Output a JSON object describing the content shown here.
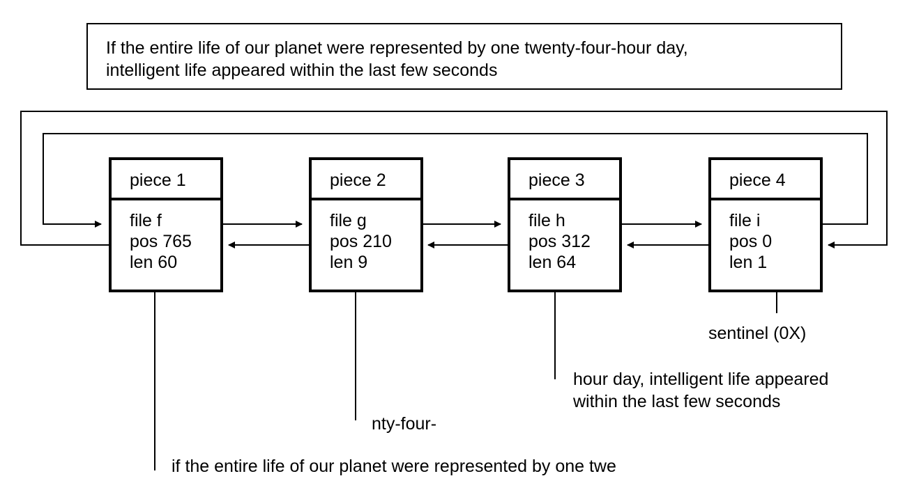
{
  "quote": {
    "line1": "If the entire life of our planet were represented by one twenty-four-hour day,",
    "line2": "intelligent life appeared within the last few seconds"
  },
  "pieces": [
    {
      "title": "piece 1",
      "file": "file f",
      "pos": "pos 765",
      "len": "len 60"
    },
    {
      "title": "piece 2",
      "file": "file g",
      "pos": "pos 210",
      "len": "len 9"
    },
    {
      "title": "piece 3",
      "file": "file h",
      "pos": "pos 312",
      "len": "len 64"
    },
    {
      "title": "piece 4",
      "file": "file i",
      "pos": "pos 0",
      "len": "len 1"
    }
  ],
  "labels": {
    "sentinel": "sentinel (0X)",
    "piece3_text_line1": "hour day, intelligent life appeared",
    "piece3_text_line2": "within the last few seconds",
    "piece2_text": "nty-four-",
    "piece1_text": "if the entire life of our planet were represented by one twe"
  }
}
